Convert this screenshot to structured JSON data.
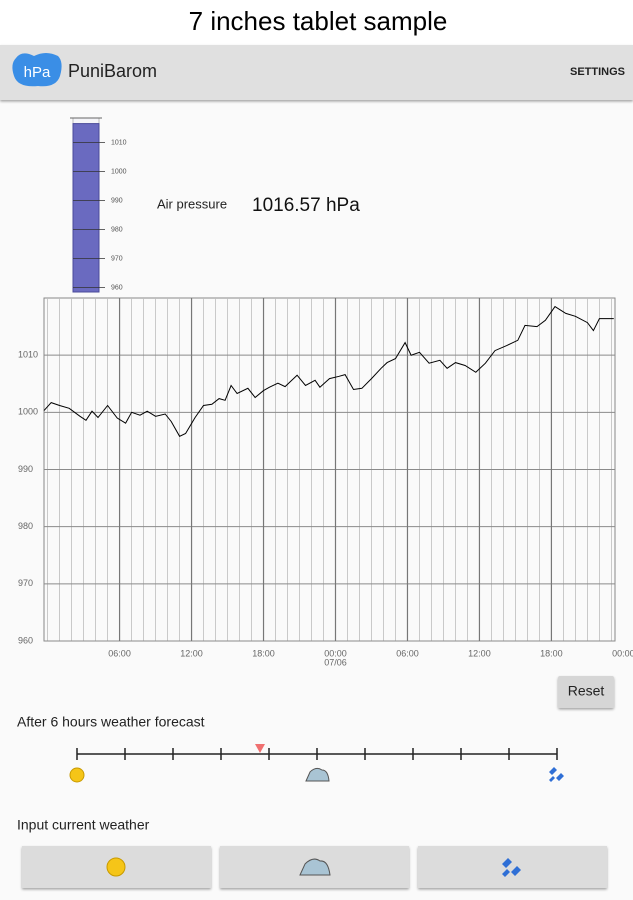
{
  "header": {
    "title": "7 inches tablet sample"
  },
  "app_bar": {
    "icon_text": "hPa",
    "app_name": "PuniBarom",
    "settings": "SETTINGS"
  },
  "gauge": {
    "ylim": [
      958.5,
      1018.5
    ],
    "yticks": [
      960,
      970,
      980,
      990,
      1000,
      1010
    ]
  },
  "reading": {
    "label": "Air pressure",
    "value": 1016.57,
    "unit": "hPa"
  },
  "chart_data": {
    "type": "line",
    "color": "#000000",
    "x": [
      -0.3,
      0.3,
      1.0,
      1.8,
      2.7,
      3.2,
      3.7,
      4.2,
      5.0,
      5.8,
      6.5,
      7.0,
      7.7,
      8.3,
      9.0,
      9.8,
      10.3,
      11.0,
      11.5,
      12.3,
      13.0,
      13.7,
      14.3,
      14.8,
      15.3,
      15.8,
      16.7,
      17.3,
      18.0,
      18.5,
      19.2,
      19.8,
      20.8,
      21.5,
      22.3,
      22.7,
      23.5,
      24.3,
      24.8,
      25.5,
      26.2,
      27.0,
      27.8,
      28.3,
      29.0,
      29.8,
      30.3,
      31.0,
      31.8,
      32.7,
      33.3,
      34.0,
      34.8,
      35.7,
      36.5,
      37.3,
      38.3,
      39.2,
      39.8,
      40.8,
      41.5,
      42.3,
      43.2,
      44.0,
      45.0,
      45.5,
      46.0,
      47.2
    ],
    "values": [
      1000.3,
      1001.7,
      1001.2,
      1000.7,
      999.3,
      998.6,
      1000.2,
      999.1,
      1001.2,
      999.0,
      998.1,
      1000.0,
      999.5,
      1000.2,
      999.3,
      999.7,
      998.4,
      995.8,
      996.3,
      999.1,
      1001.2,
      1001.4,
      1002.4,
      1002.1,
      1004.7,
      1003.3,
      1004.2,
      1002.6,
      1003.8,
      1004.4,
      1005.1,
      1004.5,
      1006.5,
      1004.7,
      1005.6,
      1004.4,
      1005.9,
      1006.3,
      1006.6,
      1004.0,
      1004.2,
      1005.9,
      1007.7,
      1008.7,
      1009.4,
      1012.2,
      1010.0,
      1010.5,
      1008.6,
      1009.1,
      1007.7,
      1008.7,
      1008.2,
      1007.0,
      1008.6,
      1010.8,
      1011.7,
      1012.6,
      1015.2,
      1015.0,
      1016.1,
      1018.5,
      1017.3,
      1016.8,
      1015.7,
      1014.3,
      1016.4,
      1016.4
    ],
    "xlim": [
      -0.3,
      47.3
    ],
    "ylim": [
      960,
      1020
    ],
    "yticks": [
      960,
      970,
      980,
      990,
      1000,
      1010
    ],
    "xticks": [
      {
        "value": 6,
        "label": "06:00"
      },
      {
        "value": 12,
        "label": "12:00"
      },
      {
        "value": 18,
        "label": "18:00"
      },
      {
        "value": 24,
        "label": "00:00"
      },
      {
        "value": 30,
        "label": "06:00"
      },
      {
        "value": 36,
        "label": "12:00"
      },
      {
        "value": 42,
        "label": "18:00"
      },
      {
        "value": 48,
        "label": "00:00"
      }
    ],
    "xtick_dates": [
      {
        "value": 24,
        "label": "07/06"
      }
    ],
    "xgrid": [
      0,
      1,
      2,
      3,
      4,
      5,
      6,
      7,
      8,
      9,
      10,
      11,
      12,
      13,
      14,
      15,
      16,
      17,
      18,
      19,
      20,
      21,
      22,
      23,
      24,
      25,
      26,
      27,
      28,
      29,
      30,
      31,
      32,
      33,
      34,
      35,
      36,
      37,
      38,
      39,
      40,
      41,
      42,
      43,
      44,
      45,
      46,
      47
    ]
  },
  "reset": "Reset",
  "forecast": {
    "title": "After 6 hours weather forecast"
  },
  "input": {
    "title": "Input current weather"
  }
}
